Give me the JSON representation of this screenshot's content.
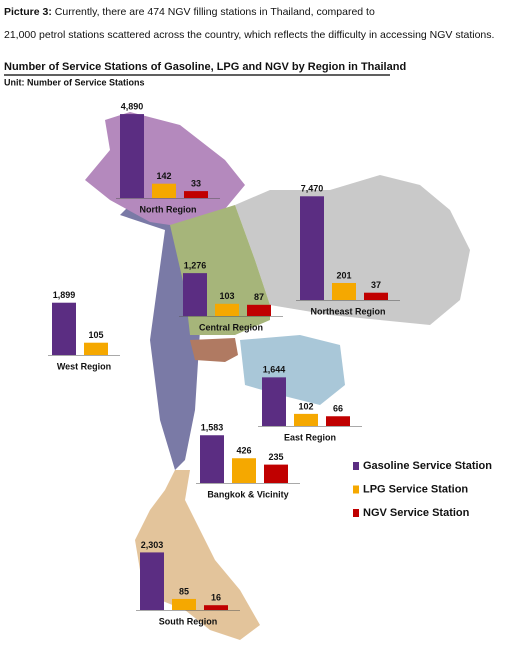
{
  "caption": {
    "label": "Picture 3:",
    "line1": "Currently, there are 474 NGV filling stations in Thailand, compared to",
    "line2": "21,000 petrol stations scattered across the country, which reflects the difficulty in accessing NGV stations."
  },
  "chart_data": {
    "type": "map-bars",
    "title": "Number of Service Stations of Gasoline, LPG and NGV by Region in Thailand",
    "subtitle": "Unit: Number of Service Stations",
    "categories": [
      "North Region",
      "Northeast Region",
      "Central Region",
      "West Region",
      "East Region",
      "Bangkok & Vicinity",
      "South Region"
    ],
    "series": [
      {
        "name": "Gasoline Service Station",
        "color": "#5b2d82",
        "values": [
          4890,
          7470,
          1276,
          1899,
          1644,
          1583,
          2303
        ],
        "value_labels": [
          "4,890",
          "7,470",
          "1,276",
          "1,899",
          "1,644",
          "1,583",
          "2,303"
        ]
      },
      {
        "name": "LPG Service Station",
        "color": "#f5a800",
        "values": [
          142,
          201,
          103,
          105,
          102,
          426,
          85
        ],
        "value_labels": [
          "142",
          "201",
          "103",
          "105",
          "102",
          "426",
          "85"
        ]
      },
      {
        "name": "NGV Service Station",
        "color": "#c00000",
        "values": [
          33,
          37,
          87,
          null,
          66,
          235,
          16
        ],
        "value_labels": [
          "33",
          "37",
          "87",
          null,
          "66",
          "235",
          "16"
        ]
      }
    ]
  }
}
